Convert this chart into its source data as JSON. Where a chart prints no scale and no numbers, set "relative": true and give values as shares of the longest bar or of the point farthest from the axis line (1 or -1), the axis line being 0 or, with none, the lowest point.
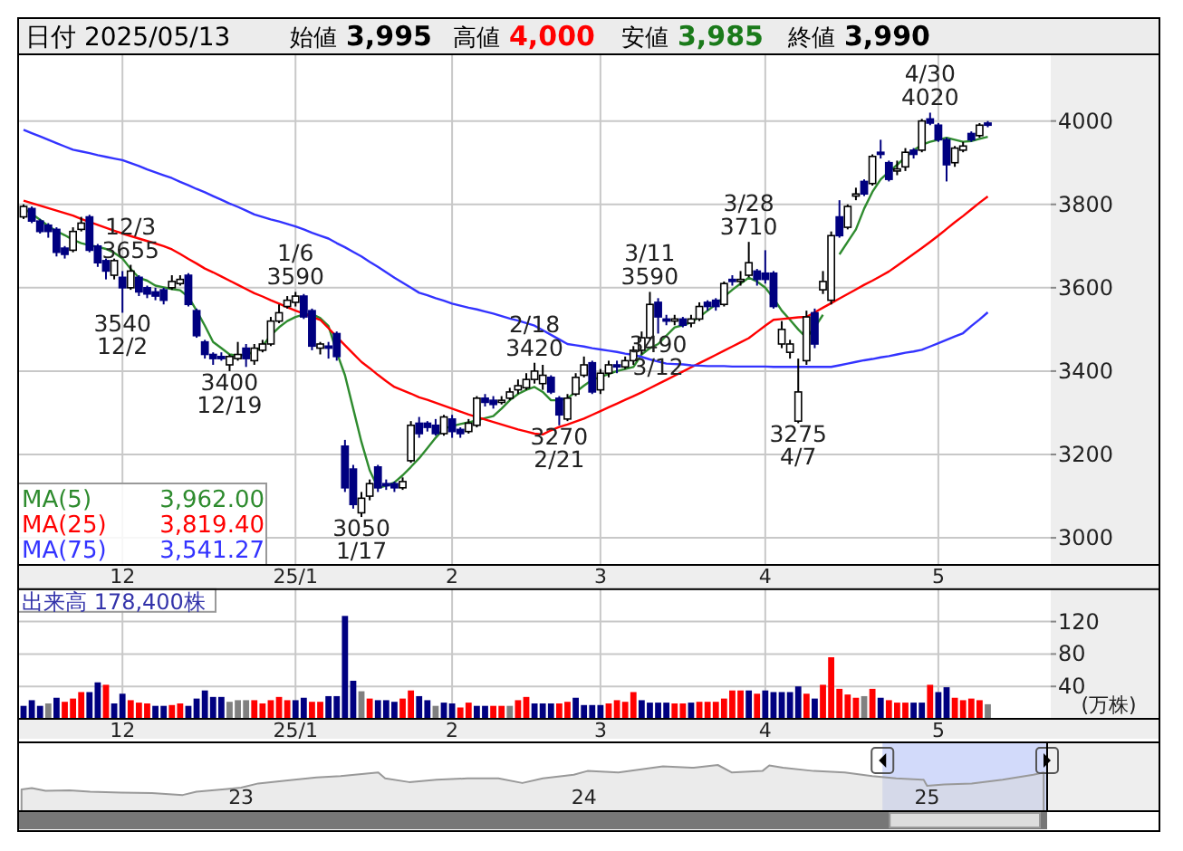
{
  "chart_data": [
    {
      "type": "candlestick",
      "title": "日付 2025/05/13",
      "annotations": [
        "始値 3,995",
        "高値 4,000",
        "安値 3,985",
        "終値 3,990",
        "3,962.00",
        "3,819.40",
        "3,541.27",
        {
          "text": "12/3 3655",
          "y": 3655
        },
        {
          "text": "3540 12/2",
          "y": 3540
        },
        {
          "text": "3400 12/19",
          "y": 3400
        },
        {
          "text": "1/6 3590",
          "y": 3590
        },
        {
          "text": "3050 1/17",
          "y": 3050
        },
        {
          "text": "2/18 3420",
          "y": 3420
        },
        {
          "text": "3270 2/21",
          "y": 3270
        },
        {
          "text": "3/11 3590",
          "y": 3590
        },
        {
          "text": "3490 3/12",
          "y": 3490
        },
        {
          "text": "3/28 3710",
          "y": 3710
        },
        {
          "text": "3275 4/7",
          "y": 3275
        },
        {
          "text": "4/30 4020",
          "y": 4020
        }
      ],
      "categories": [
        null,
        null,
        null,
        null,
        null,
        null,
        null,
        null,
        null,
        null,
        null,
        null,
        "12",
        null,
        null,
        null,
        null,
        null,
        null,
        null,
        null,
        null,
        null,
        null,
        null,
        null,
        null,
        null,
        null,
        null,
        null,
        null,
        null,
        "25/1",
        null,
        null,
        null,
        null,
        null,
        null,
        null,
        null,
        null,
        null,
        null,
        null,
        null,
        null,
        null,
        null,
        null,
        null,
        "2",
        null,
        null,
        null,
        null,
        null,
        null,
        null,
        null,
        null,
        null,
        null,
        null,
        null,
        null,
        null,
        null,
        null,
        "3",
        null,
        null,
        null,
        null,
        null,
        null,
        null,
        null,
        null,
        null,
        null,
        null,
        null,
        null,
        null,
        null,
        null,
        null,
        null,
        "4",
        null,
        null,
        null,
        null,
        null,
        null,
        null,
        null,
        null,
        null,
        null,
        null,
        null,
        null,
        null,
        null,
        null,
        null,
        null,
        null,
        "5",
        null,
        null,
        null,
        null,
        null,
        null
      ],
      "ohlc": [
        [
          3770,
          3800,
          3765,
          3795
        ],
        [
          3790,
          3795,
          3755,
          3760
        ],
        [
          3760,
          3765,
          3730,
          3735
        ],
        [
          3750,
          3755,
          3720,
          3735
        ],
        [
          3740,
          3745,
          3675,
          3685
        ],
        [
          3695,
          3700,
          3670,
          3680
        ],
        [
          3690,
          3745,
          3685,
          3735
        ],
        [
          3740,
          3770,
          3735,
          3755
        ],
        [
          3770,
          3775,
          3685,
          3690
        ],
        [
          3700,
          3705,
          3650,
          3660
        ],
        [
          3665,
          3670,
          3620,
          3640
        ],
        [
          3630,
          3670,
          3620,
          3665
        ],
        [
          3625,
          3640,
          3540,
          3600
        ],
        [
          3600,
          3655,
          3595,
          3640
        ],
        [
          3625,
          3630,
          3580,
          3590
        ],
        [
          3600,
          3605,
          3575,
          3585
        ],
        [
          3590,
          3600,
          3570,
          3580
        ],
        [
          3595,
          3600,
          3560,
          3570
        ],
        [
          3600,
          3630,
          3595,
          3615
        ],
        [
          3610,
          3630,
          3605,
          3620
        ],
        [
          3630,
          3635,
          3555,
          3560
        ],
        [
          3545,
          3550,
          3480,
          3485
        ],
        [
          3470,
          3475,
          3430,
          3440
        ],
        [
          3440,
          3445,
          3415,
          3430
        ],
        [
          3435,
          3445,
          3425,
          3430
        ],
        [
          3415,
          3440,
          3400,
          3435
        ],
        [
          3430,
          3470,
          3425,
          3440
        ],
        [
          3455,
          3465,
          3410,
          3430
        ],
        [
          3425,
          3465,
          3415,
          3455
        ],
        [
          3450,
          3475,
          3445,
          3465
        ],
        [
          3465,
          3530,
          3460,
          3520
        ],
        [
          3520,
          3560,
          3515,
          3540
        ],
        [
          3555,
          3580,
          3550,
          3570
        ],
        [
          3565,
          3590,
          3555,
          3580
        ],
        [
          3580,
          3585,
          3525,
          3530
        ],
        [
          3545,
          3550,
          3450,
          3460
        ],
        [
          3455,
          3470,
          3440,
          3465
        ],
        [
          3460,
          3470,
          3430,
          3455
        ],
        [
          3490,
          3495,
          3425,
          3435
        ],
        [
          3220,
          3235,
          3110,
          3120
        ],
        [
          3165,
          3175,
          3070,
          3080
        ],
        [
          3060,
          3110,
          3050,
          3095
        ],
        [
          3100,
          3140,
          3090,
          3130
        ],
        [
          3170,
          3175,
          3110,
          3120
        ],
        [
          3130,
          3140,
          3115,
          3125
        ],
        [
          3130,
          3135,
          3110,
          3120
        ],
        [
          3120,
          3145,
          3115,
          3135
        ],
        [
          3185,
          3280,
          3180,
          3270
        ],
        [
          3275,
          3290,
          3240,
          3250
        ],
        [
          3275,
          3280,
          3255,
          3265
        ],
        [
          3270,
          3285,
          3245,
          3250
        ],
        [
          3250,
          3295,
          3245,
          3290
        ],
        [
          3285,
          3295,
          3240,
          3255
        ],
        [
          3260,
          3265,
          3240,
          3250
        ],
        [
          3255,
          3285,
          3250,
          3275
        ],
        [
          3270,
          3340,
          3265,
          3335
        ],
        [
          3335,
          3345,
          3315,
          3325
        ],
        [
          3330,
          3340,
          3310,
          3320
        ],
        [
          3325,
          3340,
          3320,
          3330
        ],
        [
          3335,
          3360,
          3330,
          3350
        ],
        [
          3355,
          3380,
          3345,
          3365
        ],
        [
          3360,
          3395,
          3355,
          3380
        ],
        [
          3380,
          3420,
          3370,
          3400
        ],
        [
          3370,
          3415,
          3355,
          3390
        ],
        [
          3385,
          3390,
          3345,
          3350
        ],
        [
          3335,
          3340,
          3270,
          3295
        ],
        [
          3285,
          3345,
          3280,
          3335
        ],
        [
          3345,
          3395,
          3340,
          3385
        ],
        [
          3390,
          3435,
          3385,
          3415
        ],
        [
          3420,
          3425,
          3345,
          3350
        ],
        [
          3355,
          3405,
          3345,
          3395
        ],
        [
          3395,
          3425,
          3385,
          3415
        ],
        [
          3415,
          3425,
          3395,
          3410
        ],
        [
          3410,
          3435,
          3405,
          3425
        ],
        [
          3425,
          3460,
          3415,
          3450
        ],
        [
          3450,
          3495,
          3440,
          3480
        ],
        [
          3480,
          3590,
          3475,
          3560
        ],
        [
          3565,
          3575,
          3490,
          3530
        ],
        [
          3525,
          3535,
          3510,
          3520
        ],
        [
          3520,
          3535,
          3510,
          3525
        ],
        [
          3525,
          3530,
          3505,
          3510
        ],
        [
          3515,
          3535,
          3505,
          3525
        ],
        [
          3525,
          3565,
          3520,
          3555
        ],
        [
          3565,
          3570,
          3545,
          3555
        ],
        [
          3570,
          3575,
          3545,
          3555
        ],
        [
          3560,
          3615,
          3555,
          3610
        ],
        [
          3620,
          3630,
          3605,
          3615
        ],
        [
          3615,
          3640,
          3605,
          3620
        ],
        [
          3630,
          3710,
          3625,
          3660
        ],
        [
          3640,
          3645,
          3605,
          3620
        ],
        [
          3635,
          3690,
          3610,
          3620
        ],
        [
          3635,
          3640,
          3550,
          3555
        ],
        [
          3465,
          3520,
          3455,
          3500
        ],
        [
          3445,
          3475,
          3430,
          3465
        ],
        [
          3280,
          3430,
          3275,
          3350
        ],
        [
          3425,
          3545,
          3415,
          3530
        ],
        [
          3540,
          3550,
          3455,
          3465
        ],
        [
          3595,
          3640,
          3585,
          3615
        ],
        [
          3570,
          3735,
          3560,
          3725
        ],
        [
          3770,
          3810,
          3720,
          3725
        ],
        [
          3745,
          3800,
          3740,
          3795
        ],
        [
          3820,
          3840,
          3810,
          3825
        ],
        [
          3855,
          3860,
          3820,
          3825
        ],
        [
          3850,
          3920,
          3845,
          3915
        ],
        [
          3925,
          3955,
          3910,
          3920
        ],
        [
          3900,
          3905,
          3855,
          3860
        ],
        [
          3880,
          3905,
          3870,
          3885
        ],
        [
          3890,
          3935,
          3880,
          3925
        ],
        [
          3930,
          3935,
          3910,
          3920
        ],
        [
          3930,
          4005,
          3925,
          4000
        ],
        [
          4005,
          4020,
          3990,
          3995
        ],
        [
          3990,
          3995,
          3950,
          3955
        ],
        [
          3955,
          3960,
          3855,
          3895
        ],
        [
          3900,
          3940,
          3890,
          3935
        ],
        [
          3930,
          3950,
          3925,
          3940
        ],
        [
          3970,
          3975,
          3950,
          3955
        ],
        [
          3965,
          3995,
          3960,
          3990
        ],
        [
          3995,
          4000,
          3985,
          3990
        ]
      ],
      "colors": [
        "#ffffff",
        "#000080",
        "#000080",
        "#000080",
        "#000080",
        "#000080",
        "#ffffff",
        "#ffffff",
        "#000080",
        "#000080",
        "#000080",
        "#ffffff",
        "#000080",
        "#ffffff",
        "#000080",
        "#000080",
        "#000080",
        "#000080",
        "#ffffff",
        "#ffffff",
        "#000080",
        "#000080",
        "#000080",
        "#000080",
        "#000080",
        "#ffffff",
        "#ffffff",
        "#000080",
        "#ffffff",
        "#ffffff",
        "#ffffff",
        "#ffffff",
        "#ffffff",
        "#ffffff",
        "#000080",
        "#000080",
        "#ffffff",
        "#000080",
        "#000080",
        "#000080",
        "#000080",
        "#ffffff",
        "#ffffff",
        "#000080",
        "#000080",
        "#000080",
        "#ffffff",
        "#ffffff",
        "#000080",
        "#000080",
        "#000080",
        "#ffffff",
        "#000080",
        "#000080",
        "#ffffff",
        "#ffffff",
        "#000080",
        "#000080",
        "#ffffff",
        "#ffffff",
        "#ffffff",
        "#ffffff",
        "#ffffff",
        "#ffffff",
        "#000080",
        "#000080",
        "#ffffff",
        "#ffffff",
        "#ffffff",
        "#000080",
        "#ffffff",
        "#ffffff",
        "#000080",
        "#ffffff",
        "#ffffff",
        "#ffffff",
        "#ffffff",
        "#000080",
        "#000080",
        "#ffffff",
        "#000080",
        "#ffffff",
        "#ffffff",
        "#000080",
        "#000080",
        "#ffffff",
        "#000080",
        "#ffffff",
        "#ffffff",
        "#000080",
        "#000080",
        "#000080",
        "#ffffff",
        "#ffffff",
        "#ffffff",
        "#ffffff",
        "#000080",
        "#ffffff",
        "#ffffff",
        "#000080",
        "#ffffff",
        "#ffffff",
        "#000080",
        "#ffffff",
        "#000080",
        "#000080",
        "#ffffff",
        "#ffffff",
        "#000080",
        "#ffffff",
        "#000080",
        "#000080",
        "#000080",
        "#ffffff",
        "#ffffff",
        "#000080",
        "#ffffff",
        "#000080"
      ],
      "series": [
        {
          "type": "line",
          "name": "MA(5)",
          "color": "#2e8b2e",
          "values": [
            3791,
            3777,
            3763,
            3748,
            3736,
            3726,
            3715,
            3707,
            3702,
            3698,
            3693,
            3684,
            3670,
            3645,
            3624,
            3617,
            3605,
            3601,
            3597,
            3594,
            3578,
            3545,
            3509,
            3470,
            3455,
            3440,
            3437,
            3440,
            3446,
            3460,
            3486,
            3505,
            3520,
            3530,
            3536,
            3537,
            3527,
            3508,
            3445,
            3390,
            3310,
            3230,
            3162,
            3120,
            3125,
            3133,
            3150,
            3170,
            3191,
            3215,
            3240,
            3262,
            3268,
            3273,
            3277,
            3282,
            3287,
            3292,
            3310,
            3330,
            3345,
            3355,
            3362,
            3350,
            3330,
            3330,
            3335,
            3350,
            3365,
            3379,
            3386,
            3393,
            3400,
            3405,
            3410,
            3440,
            3455,
            3465,
            3485,
            3505,
            3510,
            3517,
            3530,
            3545,
            3560,
            3578,
            3595,
            3610,
            3624,
            3615,
            3600,
            3575,
            3545,
            3523,
            3500,
            3480,
            3505,
            3535,
            null,
            3680,
            3710,
            3740,
            3790,
            3830,
            3860,
            3878,
            3895,
            3913,
            3930,
            3943,
            3950,
            3955,
            3960,
            3955,
            3950,
            3952,
            3957,
            3962
          ]
        },
        {
          "type": "line",
          "name": "MA(25)",
          "color": "#ff0000",
          "values": [
            3809,
            3803,
            3797,
            3791,
            3785,
            3779,
            3773,
            3765,
            3758,
            3751,
            3744,
            3737,
            3730,
            3724,
            3718,
            3712,
            3706,
            3700,
            3692,
            3681,
            3669,
            3658,
            3646,
            3637,
            3627,
            3617,
            3607,
            3597,
            3587,
            3579,
            3570,
            3562,
            3553,
            3545,
            3538,
            3530,
            3523,
            3503,
            3482,
            3462,
            3442,
            3422,
            3407,
            3391,
            3376,
            3362,
            3354,
            3346,
            3337,
            3331,
            3324,
            3317,
            3310,
            3303,
            3296,
            3290,
            3284,
            3278,
            3272,
            3266,
            3260,
            3255,
            3250,
            3248,
            3258,
            3266,
            3272,
            3279,
            3286,
            3295,
            3304,
            3313,
            3322,
            3331,
            3340,
            3349,
            3359,
            3369,
            3379,
            3389,
            3399,
            3409,
            3419,
            3429,
            3439,
            3449,
            3459,
            3469,
            3479,
            3494,
            3509,
            3523,
            3525,
            3527,
            3529,
            3530,
            3541,
            3552,
            3563,
            3574,
            3585,
            3596,
            3607,
            3617,
            3628,
            3639,
            3653,
            3667,
            3681,
            3695,
            3710,
            3725,
            3741,
            3757,
            3772,
            3788,
            3804,
            3819
          ]
        },
        {
          "type": "line",
          "name": "MA(75)",
          "color": "#3333ff",
          "values": [
            3979,
            3971,
            3963,
            3955,
            3947,
            3939,
            3931,
            3927,
            3923,
            3918,
            3914,
            3910,
            3906,
            3899,
            3892,
            3884,
            3877,
            3870,
            3863,
            3854,
            3846,
            3837,
            3829,
            3820,
            3811,
            3802,
            3794,
            3785,
            3776,
            3770,
            3764,
            3759,
            3753,
            3747,
            3740,
            3732,
            3725,
            3718,
            3707,
            3697,
            3686,
            3675,
            3662,
            3650,
            3637,
            3624,
            3612,
            3600,
            3588,
            3582,
            3575,
            3569,
            3562,
            3557,
            3552,
            3548,
            3543,
            3538,
            3532,
            3526,
            3521,
            3515,
            3509,
            3498,
            3487,
            3476,
            3465,
            3462,
            3459,
            3455,
            3452,
            3449,
            3446,
            3442,
            3439,
            3434,
            3428,
            3423,
            3418,
            3417,
            3416,
            3414,
            3413,
            3412,
            3412,
            3412,
            3411,
            3411,
            3411,
            3411,
            3411,
            3410,
            3410,
            3410,
            3410,
            3410,
            3410,
            3410,
            3410,
            3414,
            3418,
            3422,
            3426,
            3429,
            3433,
            3436,
            3440,
            3444,
            3447,
            3451,
            3459,
            3467,
            3475,
            3483,
            3491,
            3508,
            3524,
            3541
          ]
        }
      ],
      "ylim": [
        2935,
        4160
      ],
      "yticks": [
        3000,
        3200,
        3400,
        3600,
        3800,
        4000
      ],
      "grid": true,
      "legend": "bottom left"
    },
    {
      "type": "bar",
      "title": "出来高 178,400株",
      "ylabel": "(万株)",
      "categories": [
        null,
        null,
        null,
        null,
        null,
        null,
        null,
        null,
        null,
        null,
        null,
        null,
        "12",
        null,
        null,
        null,
        null,
        null,
        null,
        null,
        null,
        null,
        null,
        null,
        null,
        null,
        null,
        null,
        null,
        null,
        null,
        null,
        null,
        "25/1",
        null,
        null,
        null,
        null,
        null,
        null,
        null,
        null,
        null,
        null,
        null,
        null,
        null,
        null,
        null,
        null,
        null,
        null,
        "2",
        null,
        null,
        null,
        null,
        null,
        null,
        null,
        null,
        null,
        null,
        null,
        null,
        null,
        null,
        null,
        null,
        null,
        "3",
        null,
        null,
        null,
        null,
        null,
        null,
        null,
        null,
        null,
        null,
        null,
        null,
        null,
        null,
        null,
        null,
        null,
        null,
        null,
        "4",
        null,
        null,
        null,
        null,
        null,
        null,
        null,
        null,
        null,
        null,
        null,
        null,
        null,
        null,
        null,
        null,
        null,
        null,
        null,
        null,
        "5",
        null,
        null,
        null,
        null,
        null,
        null
      ],
      "values": [
        16,
        23,
        16,
        19,
        26,
        21,
        25,
        33,
        33,
        45,
        42,
        19,
        31,
        23,
        20,
        19,
        16,
        16,
        17,
        19,
        16,
        25,
        35,
        27,
        27,
        21,
        23,
        23,
        23,
        19,
        23,
        27,
        23,
        23,
        26,
        21,
        21,
        28,
        28,
        127,
        47,
        34,
        25,
        23,
        23,
        21,
        25,
        35,
        28,
        23,
        16,
        20,
        19,
        14,
        20,
        16,
        16,
        16,
        16,
        16,
        23,
        27,
        19,
        19,
        19,
        19,
        21,
        26,
        17,
        17,
        17,
        19,
        23,
        21,
        33,
        23,
        20,
        20,
        20,
        19,
        19,
        20,
        21,
        21,
        21,
        25,
        35,
        35,
        35,
        31,
        35,
        33,
        33,
        33,
        40,
        31,
        25,
        42,
        76,
        37,
        30,
        26,
        28,
        37,
        26,
        23,
        20,
        20,
        20,
        20,
        42,
        33,
        39,
        26,
        23,
        25,
        23,
        18
      ],
      "colors": [
        "#000080",
        "#000080",
        "#000080",
        "#808080",
        "#000080",
        "#ff0000",
        "#ff0000",
        "#ff0000",
        "#000080",
        "#000080",
        "#ff0000",
        "#000080",
        "#000080",
        "#ff0000",
        "#ff0000",
        "#ff0000",
        "#000080",
        "#000080",
        "#ff0000",
        "#ff0000",
        "#000080",
        "#000080",
        "#000080",
        "#000080",
        "#000080",
        "#808080",
        "#808080",
        "#808080",
        "#ff0000",
        "#ff0000",
        "#ff0000",
        "#ff0000",
        "#ff0000",
        "#000080",
        "#000080",
        "#ff0000",
        "#ff0000",
        "#000080",
        "#000080",
        "#000080",
        "#000080",
        "#808080",
        "#ff0000",
        "#000080",
        "#000080",
        "#000080",
        "#ff0000",
        "#ff0000",
        "#000080",
        "#000080",
        "#808080",
        "#000080",
        "#000080",
        "#ff0000",
        "#ff0000",
        "#000080",
        "#000080",
        "#ff0000",
        "#ff0000",
        "#808080",
        "#ff0000",
        "#ff0000",
        "#000080",
        "#000080",
        "#000080",
        "#ff0000",
        "#ff0000",
        "#000080",
        "#000080",
        "#000080",
        "#000080",
        "#ff0000",
        "#ff0000",
        "#ff0000",
        "#ff0000",
        "#000080",
        "#000080",
        "#000080",
        "#000080",
        "#ff0000",
        "#ff0000",
        "#000080",
        "#ff0000",
        "#ff0000",
        "#ff0000",
        "#ff0000",
        "#ff0000",
        "#ff0000",
        "#000080",
        "#ff0000",
        "#000080",
        "#000080",
        "#000080",
        "#000080",
        "#000080",
        "#ff0000",
        "#000080",
        "#ff0000",
        "#ff0000",
        "#ff0000",
        "#ff0000",
        "#ff0000",
        "#808080",
        "#ff0000",
        "#000080",
        "#ff0000",
        "#ff0000",
        "#ff0000",
        "#000080",
        "#000080",
        "#ff0000",
        "#000080",
        "#000080",
        "#ff0000",
        "#ff0000",
        "#ff0000",
        "#ff0000",
        "#808080"
      ],
      "ylim": [
        0,
        160
      ],
      "yticks": [
        40,
        80,
        120
      ],
      "grid": true
    },
    {
      "type": "area",
      "relative": true,
      "color": "#999999",
      "tick_labels": "x",
      "x": [
        2022.36,
        2022.39,
        2022.43,
        2022.5,
        2022.56,
        2022.65,
        2022.74,
        2022.83,
        2022.87,
        2022.96,
        2023.0,
        2023.05,
        2023.13,
        2023.22,
        2023.29,
        2023.4,
        2023.42,
        2023.49,
        2023.57,
        2023.66,
        2023.75,
        2023.82,
        2023.88,
        2023.97,
        2024.01,
        2024.1,
        2024.23,
        2024.32,
        2024.39,
        2024.43,
        2024.52,
        2024.54,
        2024.58,
        2024.67,
        2024.76,
        2024.84,
        2024.91,
        2024.99,
        2025.0,
        2025.05,
        2025.13,
        2025.22,
        2025.31,
        2025.34
      ],
      "values": [
        0.47,
        0.5,
        0.44,
        0.45,
        0.42,
        0.4,
        0.39,
        0.35,
        0.42,
        0.48,
        0.51,
        0.6,
        0.66,
        0.73,
        0.76,
        0.84,
        0.71,
        0.63,
        0.68,
        0.71,
        0.71,
        0.61,
        0.71,
        0.79,
        0.87,
        0.84,
        0.97,
        0.94,
        1.0,
        0.84,
        0.87,
        0.99,
        0.94,
        0.87,
        0.84,
        0.76,
        0.71,
        0.68,
        0.55,
        0.58,
        0.6,
        0.68,
        0.79,
        0.84
      ],
      "xlim": [
        2022.35,
        2025.35
      ],
      "xticks": [
        {
          "value": 2023,
          "label": "23"
        },
        {
          "value": 2024,
          "label": "24"
        },
        {
          "value": 2025,
          "label": "25"
        }
      ],
      "bands": [
        {
          "axis": "x",
          "from": 2024.87,
          "to": 2025.35,
          "color": "#b4c2f6"
        }
      ]
    }
  ]
}
